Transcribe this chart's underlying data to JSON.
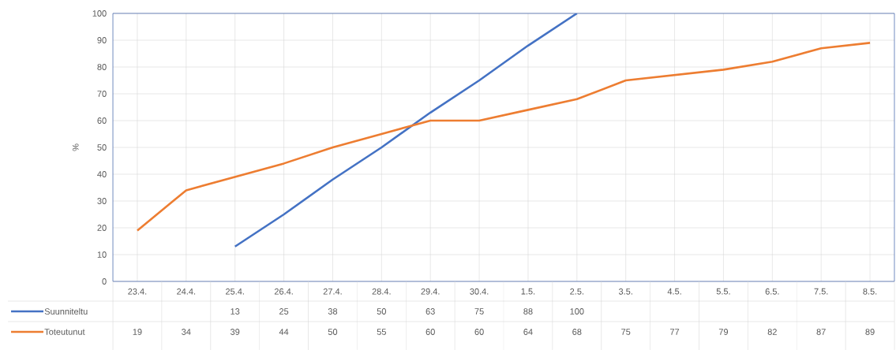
{
  "chart_data": {
    "type": "line",
    "ylabel": "%",
    "categories": [
      "23.4.",
      "24.4.",
      "25.4.",
      "26.4.",
      "27.4.",
      "28.4.",
      "29.4.",
      "30.4.",
      "1.5.",
      "2.5.",
      "3.5.",
      "4.5.",
      "5.5.",
      "6.5.",
      "7.5.",
      "8.5."
    ],
    "series": [
      {
        "name": "Suunniteltu",
        "color": "#4472c4",
        "values": [
          null,
          null,
          13,
          25,
          38,
          50,
          63,
          75,
          88,
          100,
          null,
          null,
          null,
          null,
          null,
          null
        ]
      },
      {
        "name": "Toteutunut",
        "color": "#ed7d31",
        "values": [
          19,
          34,
          39,
          44,
          50,
          55,
          60,
          60,
          64,
          68,
          75,
          77,
          79,
          82,
          87,
          89
        ]
      }
    ],
    "ylim": [
      0,
      100
    ],
    "yticks": [
      0,
      10,
      20,
      30,
      40,
      50,
      60,
      70,
      80,
      90,
      100
    ],
    "grid": true,
    "legend": "bottom",
    "data_labels": true,
    "marker": "none",
    "line_style": "solid"
  }
}
